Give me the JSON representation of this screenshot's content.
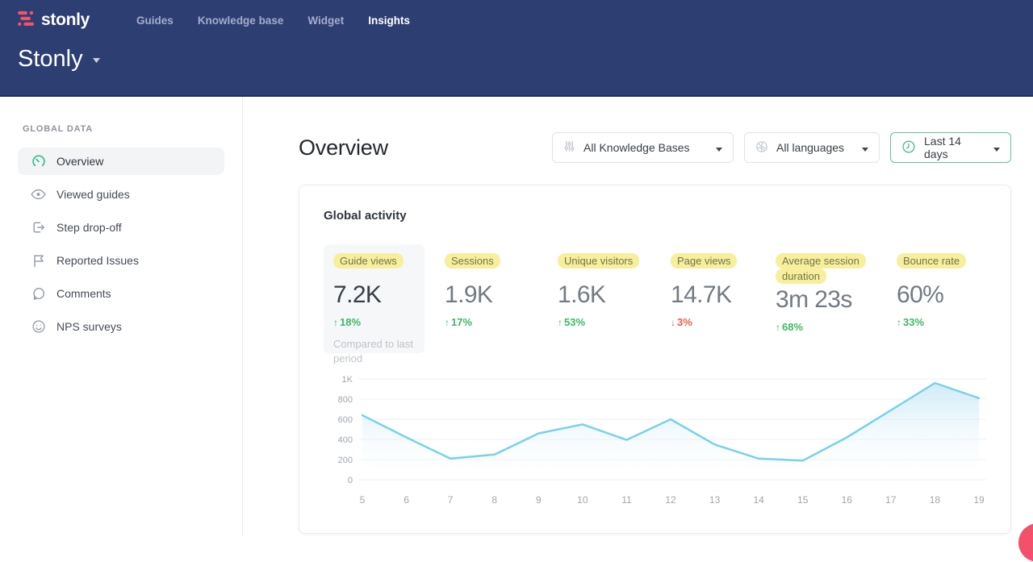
{
  "brand": {
    "logo_text": "stonly",
    "workspace_name": "Stonly"
  },
  "topnav": {
    "items": [
      {
        "label": "Guides",
        "active": false
      },
      {
        "label": "Knowledge base",
        "active": false
      },
      {
        "label": "Widget",
        "active": false
      },
      {
        "label": "Insights",
        "active": true
      }
    ]
  },
  "sidebar": {
    "section_title": "GLOBAL DATA",
    "items": [
      {
        "label": "Overview",
        "icon": "gauge-icon",
        "active": true
      },
      {
        "label": "Viewed guides",
        "icon": "eye-icon",
        "active": false
      },
      {
        "label": "Step drop-off",
        "icon": "step-dropoff-icon",
        "active": false
      },
      {
        "label": "Reported Issues",
        "icon": "flag-icon",
        "active": false
      },
      {
        "label": "Comments",
        "icon": "comment-icon",
        "active": false
      },
      {
        "label": "NPS surveys",
        "icon": "smiley-icon",
        "active": false
      }
    ]
  },
  "main": {
    "page_title": "Overview",
    "filters": {
      "knowledge_bases": {
        "value": "All Knowledge Bases",
        "icon": "sliders-icon"
      },
      "languages": {
        "value": "All languages",
        "icon": "globe-icon"
      },
      "date_range": {
        "value": "Last 14 days",
        "icon": "clock-icon"
      }
    },
    "card_title": "Global activity",
    "metrics": [
      {
        "label": "Guide views",
        "value": "7.2K",
        "arrow": "↑",
        "change": "18%",
        "direction": "up",
        "note": "Compared to last period",
        "selected": true
      },
      {
        "label": "Sessions",
        "value": "1.9K",
        "arrow": "↑",
        "change": "17%",
        "direction": "up"
      },
      {
        "label": "Unique visitors",
        "value": "1.6K",
        "arrow": "↑",
        "change": "53%",
        "direction": "up"
      },
      {
        "label": "Page views",
        "value": "14.7K",
        "arrow": "↓",
        "change": "3%",
        "direction": "down"
      },
      {
        "label": "Average session duration",
        "value": "3m 23s",
        "arrow": "↑",
        "change": "68%",
        "direction": "up"
      },
      {
        "label": "Bounce rate",
        "value": "60%",
        "arrow": "↑",
        "change": "33%",
        "direction": "up"
      }
    ]
  },
  "chart_data": {
    "type": "area",
    "title": "Global activity",
    "x": [
      5,
      6,
      7,
      8,
      9,
      10,
      11,
      12,
      13,
      14,
      15,
      16,
      17,
      18,
      19
    ],
    "series": [
      {
        "name": "Guide views",
        "values": [
          640,
          420,
          210,
          250,
          460,
          550,
          395,
          600,
          350,
          210,
          190,
          420,
          690,
          960,
          810
        ]
      }
    ],
    "ylim": [
      0,
      1000
    ],
    "yticks": [
      0,
      200,
      400,
      600,
      800,
      1000
    ],
    "ytick_labels": [
      "0",
      "200",
      "400",
      "600",
      "800",
      "1K"
    ],
    "grid": true,
    "legend": "none",
    "line_color": "#78d1ee",
    "area_fill_top": "#bfe5f5"
  },
  "colors": {
    "header_bg": "#2d3e73",
    "brand_pink": "#f2536b",
    "accent_green": "#24bd7e",
    "date_border_green": "#5ec492",
    "highlight_yellow": "#f8ef9d",
    "positive_green": "#3eb864",
    "negative_red": "#f2594c",
    "chart_line_blue": "#78d1ee"
  }
}
